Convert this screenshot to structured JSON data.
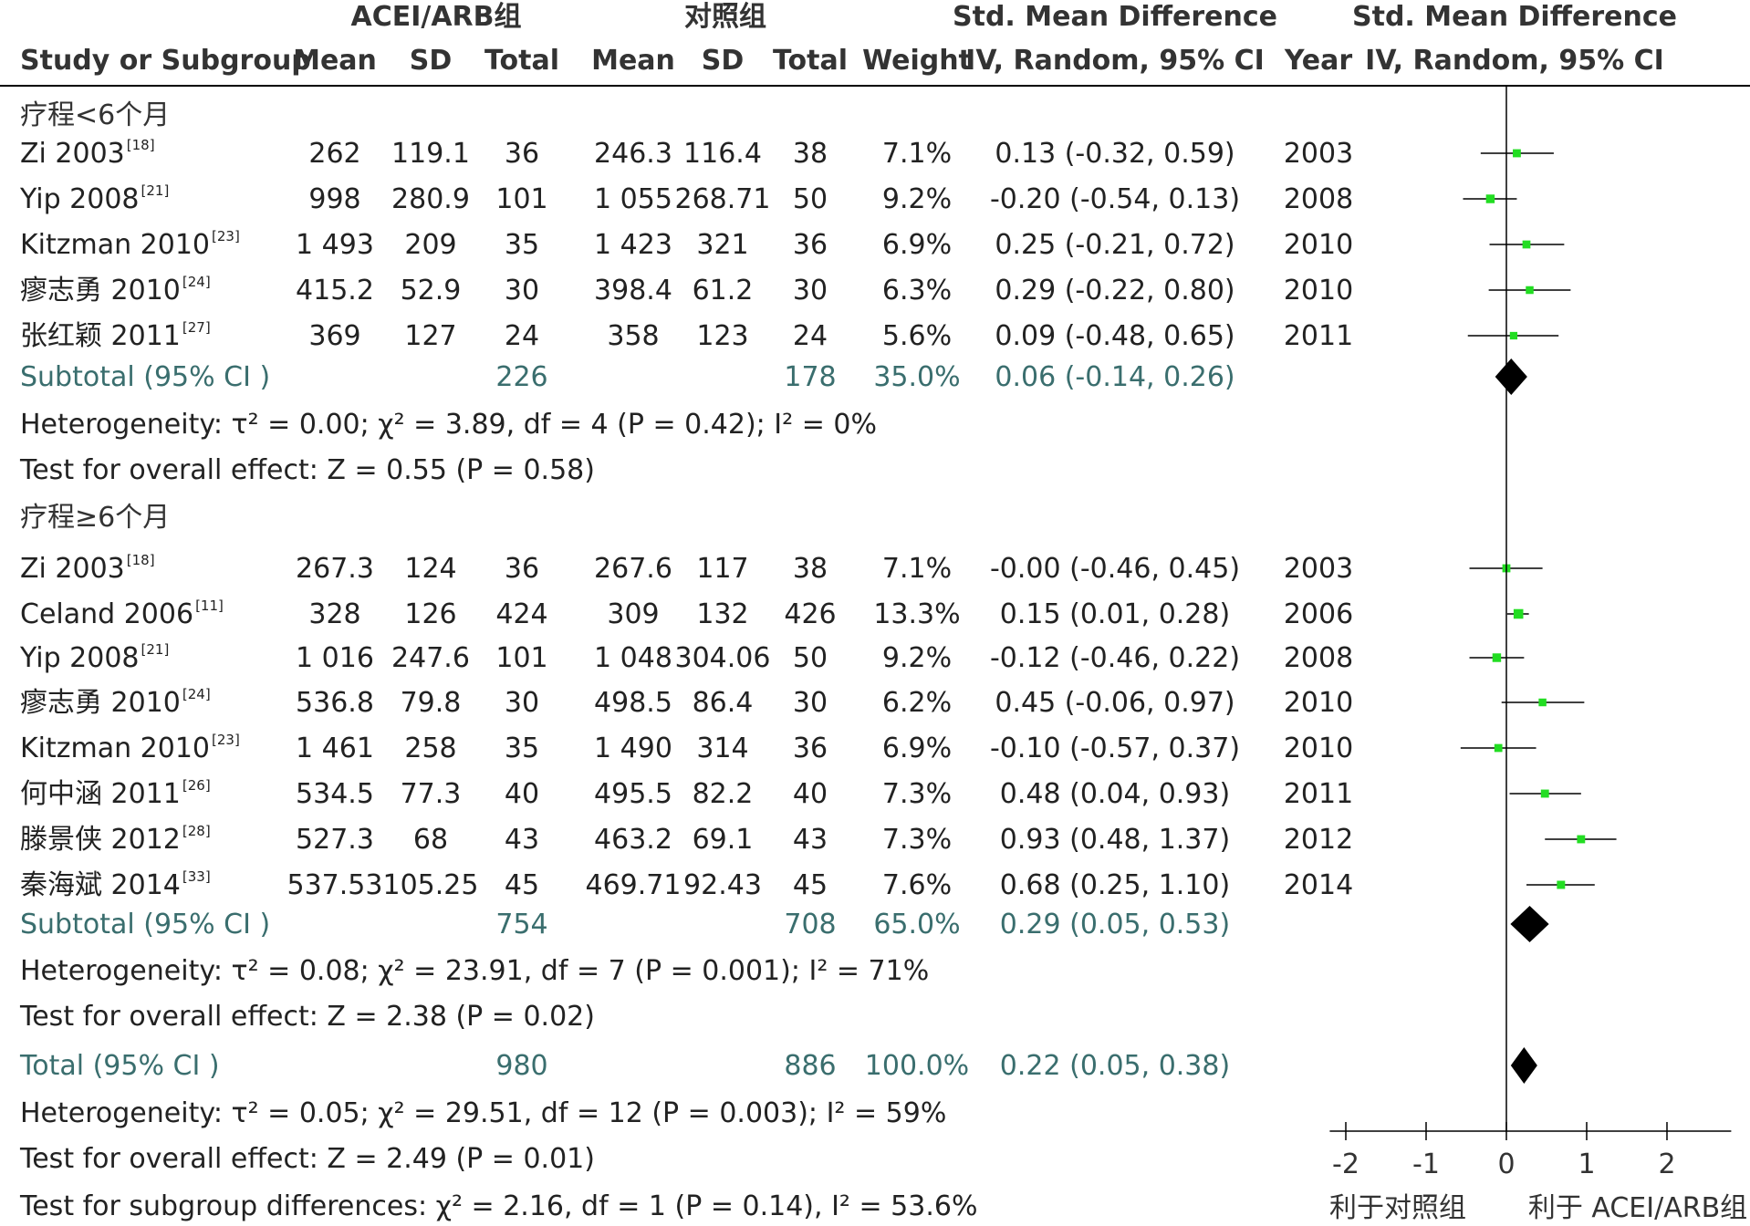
{
  "headers": {
    "group1": "ACEI/ARB组",
    "group2": "对照组",
    "smd_top": "Std. Mean Difference",
    "smd_bottom": "IV, Random, 95% CI",
    "plot_top": "Std. Mean Difference",
    "plot_bottom": "IV, Random, 95% CI",
    "study": "Study or Subgroup",
    "mean1": "Mean",
    "sd1": "SD",
    "total1": "Total",
    "mean2": "Mean",
    "sd2": "SD",
    "total2": "Total",
    "weight": "Weight",
    "year": "Year"
  },
  "subgroups": [
    {
      "title": "疗程<6个月",
      "studies": [
        {
          "name": "Zi 2003",
          "ref": "[18]",
          "mean1": "262",
          "sd1": "119.1",
          "n1": "36",
          "mean2": "246.3",
          "sd2": "116.4",
          "n2": "38",
          "weight": "7.1%",
          "ci": "0.13 (-0.32, 0.59)",
          "year": "2003"
        },
        {
          "name": "Yip 2008",
          "ref": "[21]",
          "mean1": "998",
          "sd1": "280.9",
          "n1": "101",
          "mean2": "1 055",
          "sd2": "268.71",
          "n2": "50",
          "weight": "9.2%",
          "ci": "-0.20 (-0.54, 0.13)",
          "year": "2008"
        },
        {
          "name": "Kitzman 2010",
          "ref": "[23]",
          "mean1": "1 493",
          "sd1": "209",
          "n1": "35",
          "mean2": "1 423",
          "sd2": "321",
          "n2": "36",
          "weight": "6.9%",
          "ci": "0.25 (-0.21, 0.72)",
          "year": "2010"
        },
        {
          "name": "瘳志勇 2010",
          "ref": "[24]",
          "mean1": "415.2",
          "sd1": "52.9",
          "n1": "30",
          "mean2": "398.4",
          "sd2": "61.2",
          "n2": "30",
          "weight": "6.3%",
          "ci": "0.29 (-0.22, 0.80)",
          "year": "2010"
        },
        {
          "name": "张红颖 2011",
          "ref": "[27]",
          "mean1": "369",
          "sd1": "127",
          "n1": "24",
          "mean2": "358",
          "sd2": "123",
          "n2": "24",
          "weight": "5.6%",
          "ci": "0.09 (-0.48, 0.65)",
          "year": "2011"
        }
      ],
      "subtotal": {
        "label": "Subtotal (95% CI )",
        "n1": "226",
        "n2": "178",
        "weight": "35.0%",
        "ci": "0.06 (-0.14, 0.26)"
      },
      "heterogeneity": "Heterogeneity: τ² = 0.00; χ² = 3.89, df = 4 (P = 0.42); I² = 0%",
      "overall": "Test for overall effect: Z = 0.55 (P = 0.58)"
    },
    {
      "title": "疗程≥6个月",
      "studies": [
        {
          "name": "Zi 2003",
          "ref": "[18]",
          "mean1": "267.3",
          "sd1": "124",
          "n1": "36",
          "mean2": "267.6",
          "sd2": "117",
          "n2": "38",
          "weight": "7.1%",
          "ci": "-0.00 (-0.46, 0.45)",
          "year": "2003"
        },
        {
          "name": "Celand 2006",
          "ref": "[11]",
          "mean1": "328",
          "sd1": "126",
          "n1": "424",
          "mean2": "309",
          "sd2": "132",
          "n2": "426",
          "weight": "13.3%",
          "ci": "0.15 (0.01, 0.28)",
          "year": "2006"
        },
        {
          "name": "Yip 2008",
          "ref": "[21]",
          "mean1": "1 016",
          "sd1": "247.6",
          "n1": "101",
          "mean2": "1 048",
          "sd2": "304.06",
          "n2": "50",
          "weight": "9.2%",
          "ci": "-0.12 (-0.46, 0.22)",
          "year": "2008"
        },
        {
          "name": "瘳志勇 2010",
          "ref": "[24]",
          "mean1": "536.8",
          "sd1": "79.8",
          "n1": "30",
          "mean2": "498.5",
          "sd2": "86.4",
          "n2": "30",
          "weight": "6.2%",
          "ci": "0.45 (-0.06, 0.97)",
          "year": "2010"
        },
        {
          "name": "Kitzman 2010",
          "ref": "[23]",
          "mean1": "1 461",
          "sd1": "258",
          "n1": "35",
          "mean2": "1 490",
          "sd2": "314",
          "n2": "36",
          "weight": "6.9%",
          "ci": "-0.10 (-0.57, 0.37)",
          "year": "2010"
        },
        {
          "name": "何中涵 2011",
          "ref": "[26]",
          "mean1": "534.5",
          "sd1": "77.3",
          "n1": "40",
          "mean2": "495.5",
          "sd2": "82.2",
          "n2": "40",
          "weight": "7.3%",
          "ci": "0.48 (0.04, 0.93)",
          "year": "2011"
        },
        {
          "name": "滕景侠 2012",
          "ref": "[28]",
          "mean1": "527.3",
          "sd1": "68",
          "n1": "43",
          "mean2": "463.2",
          "sd2": "69.1",
          "n2": "43",
          "weight": "7.3%",
          "ci": "0.93 (0.48, 1.37)",
          "year": "2012"
        },
        {
          "name": "秦海斌 2014",
          "ref": "[33]",
          "mean1": "537.53",
          "sd1": "105.25",
          "n1": "45",
          "mean2": "469.71",
          "sd2": "92.43",
          "n2": "45",
          "weight": "7.6%",
          "ci": "0.68 (0.25, 1.10)",
          "year": "2014"
        }
      ],
      "subtotal": {
        "label": "Subtotal (95% CI )",
        "n1": "754",
        "n2": "708",
        "weight": "65.0%",
        "ci": "0.29 (0.05, 0.53)"
      },
      "heterogeneity": "Heterogeneity: τ² = 0.08; χ² = 23.91, df = 7 (P = 0.001); I² = 71%",
      "overall": "Test for overall effect: Z = 2.38 (P = 0.02)"
    }
  ],
  "total": {
    "label": "Total (95% CI )",
    "n1": "980",
    "n2": "886",
    "weight": "100.0%",
    "ci": "0.22 (0.05, 0.38)"
  },
  "total_heterogeneity": "Heterogeneity: τ² = 0.05; χ² = 29.51, df = 12 (P = 0.003); I² = 59%",
  "total_overall": "Test for overall effect: Z = 2.49 (P = 0.01)",
  "subgroup_diff": "Test for subgroup differences: χ² = 2.16, df = 1 (P = 0.14), I² = 53.6%",
  "axis": {
    "ticks": [
      "-2",
      "-1",
      "0",
      "1",
      "2"
    ],
    "left_label": "利于对照组",
    "right_label": "利于 ACEI/ARB组"
  },
  "colors": {
    "study_marker": "#22dd22",
    "diamond": "#000000",
    "subtotal_text": "#3a6e6e"
  },
  "chart_data": {
    "type": "forest",
    "xlim": [
      -2.2,
      2.8
    ],
    "null_line": 0,
    "ticks": [
      -2,
      -1,
      0,
      1,
      2
    ],
    "series": [
      {
        "name": "疗程<6个月",
        "points": [
          {
            "study": "Zi 2003",
            "smd": 0.13,
            "lo": -0.32,
            "hi": 0.59,
            "weight": 7.1
          },
          {
            "study": "Yip 2008",
            "smd": -0.2,
            "lo": -0.54,
            "hi": 0.13,
            "weight": 9.2
          },
          {
            "study": "Kitzman 2010",
            "smd": 0.25,
            "lo": -0.21,
            "hi": 0.72,
            "weight": 6.9
          },
          {
            "study": "瘳志勇 2010",
            "smd": 0.29,
            "lo": -0.22,
            "hi": 0.8,
            "weight": 6.3
          },
          {
            "study": "张红颖 2011",
            "smd": 0.09,
            "lo": -0.48,
            "hi": 0.65,
            "weight": 5.6
          }
        ],
        "subtotal": {
          "smd": 0.06,
          "lo": -0.14,
          "hi": 0.26
        }
      },
      {
        "name": "疗程≥6个月",
        "points": [
          {
            "study": "Zi 2003",
            "smd": -0.0,
            "lo": -0.46,
            "hi": 0.45,
            "weight": 7.1
          },
          {
            "study": "Celand 2006",
            "smd": 0.15,
            "lo": 0.01,
            "hi": 0.28,
            "weight": 13.3
          },
          {
            "study": "Yip 2008",
            "smd": -0.12,
            "lo": -0.46,
            "hi": 0.22,
            "weight": 9.2
          },
          {
            "study": "瘳志勇 2010",
            "smd": 0.45,
            "lo": -0.06,
            "hi": 0.97,
            "weight": 6.2
          },
          {
            "study": "Kitzman 2010",
            "smd": -0.1,
            "lo": -0.57,
            "hi": 0.37,
            "weight": 6.9
          },
          {
            "study": "何中涵 2011",
            "smd": 0.48,
            "lo": 0.04,
            "hi": 0.93,
            "weight": 7.3
          },
          {
            "study": "滕景侠 2012",
            "smd": 0.93,
            "lo": 0.48,
            "hi": 1.37,
            "weight": 7.3
          },
          {
            "study": "秦海斌 2014",
            "smd": 0.68,
            "lo": 0.25,
            "hi": 1.1,
            "weight": 7.6
          }
        ],
        "subtotal": {
          "smd": 0.29,
          "lo": 0.05,
          "hi": 0.53
        }
      }
    ],
    "total": {
      "smd": 0.22,
      "lo": 0.05,
      "hi": 0.38
    }
  }
}
